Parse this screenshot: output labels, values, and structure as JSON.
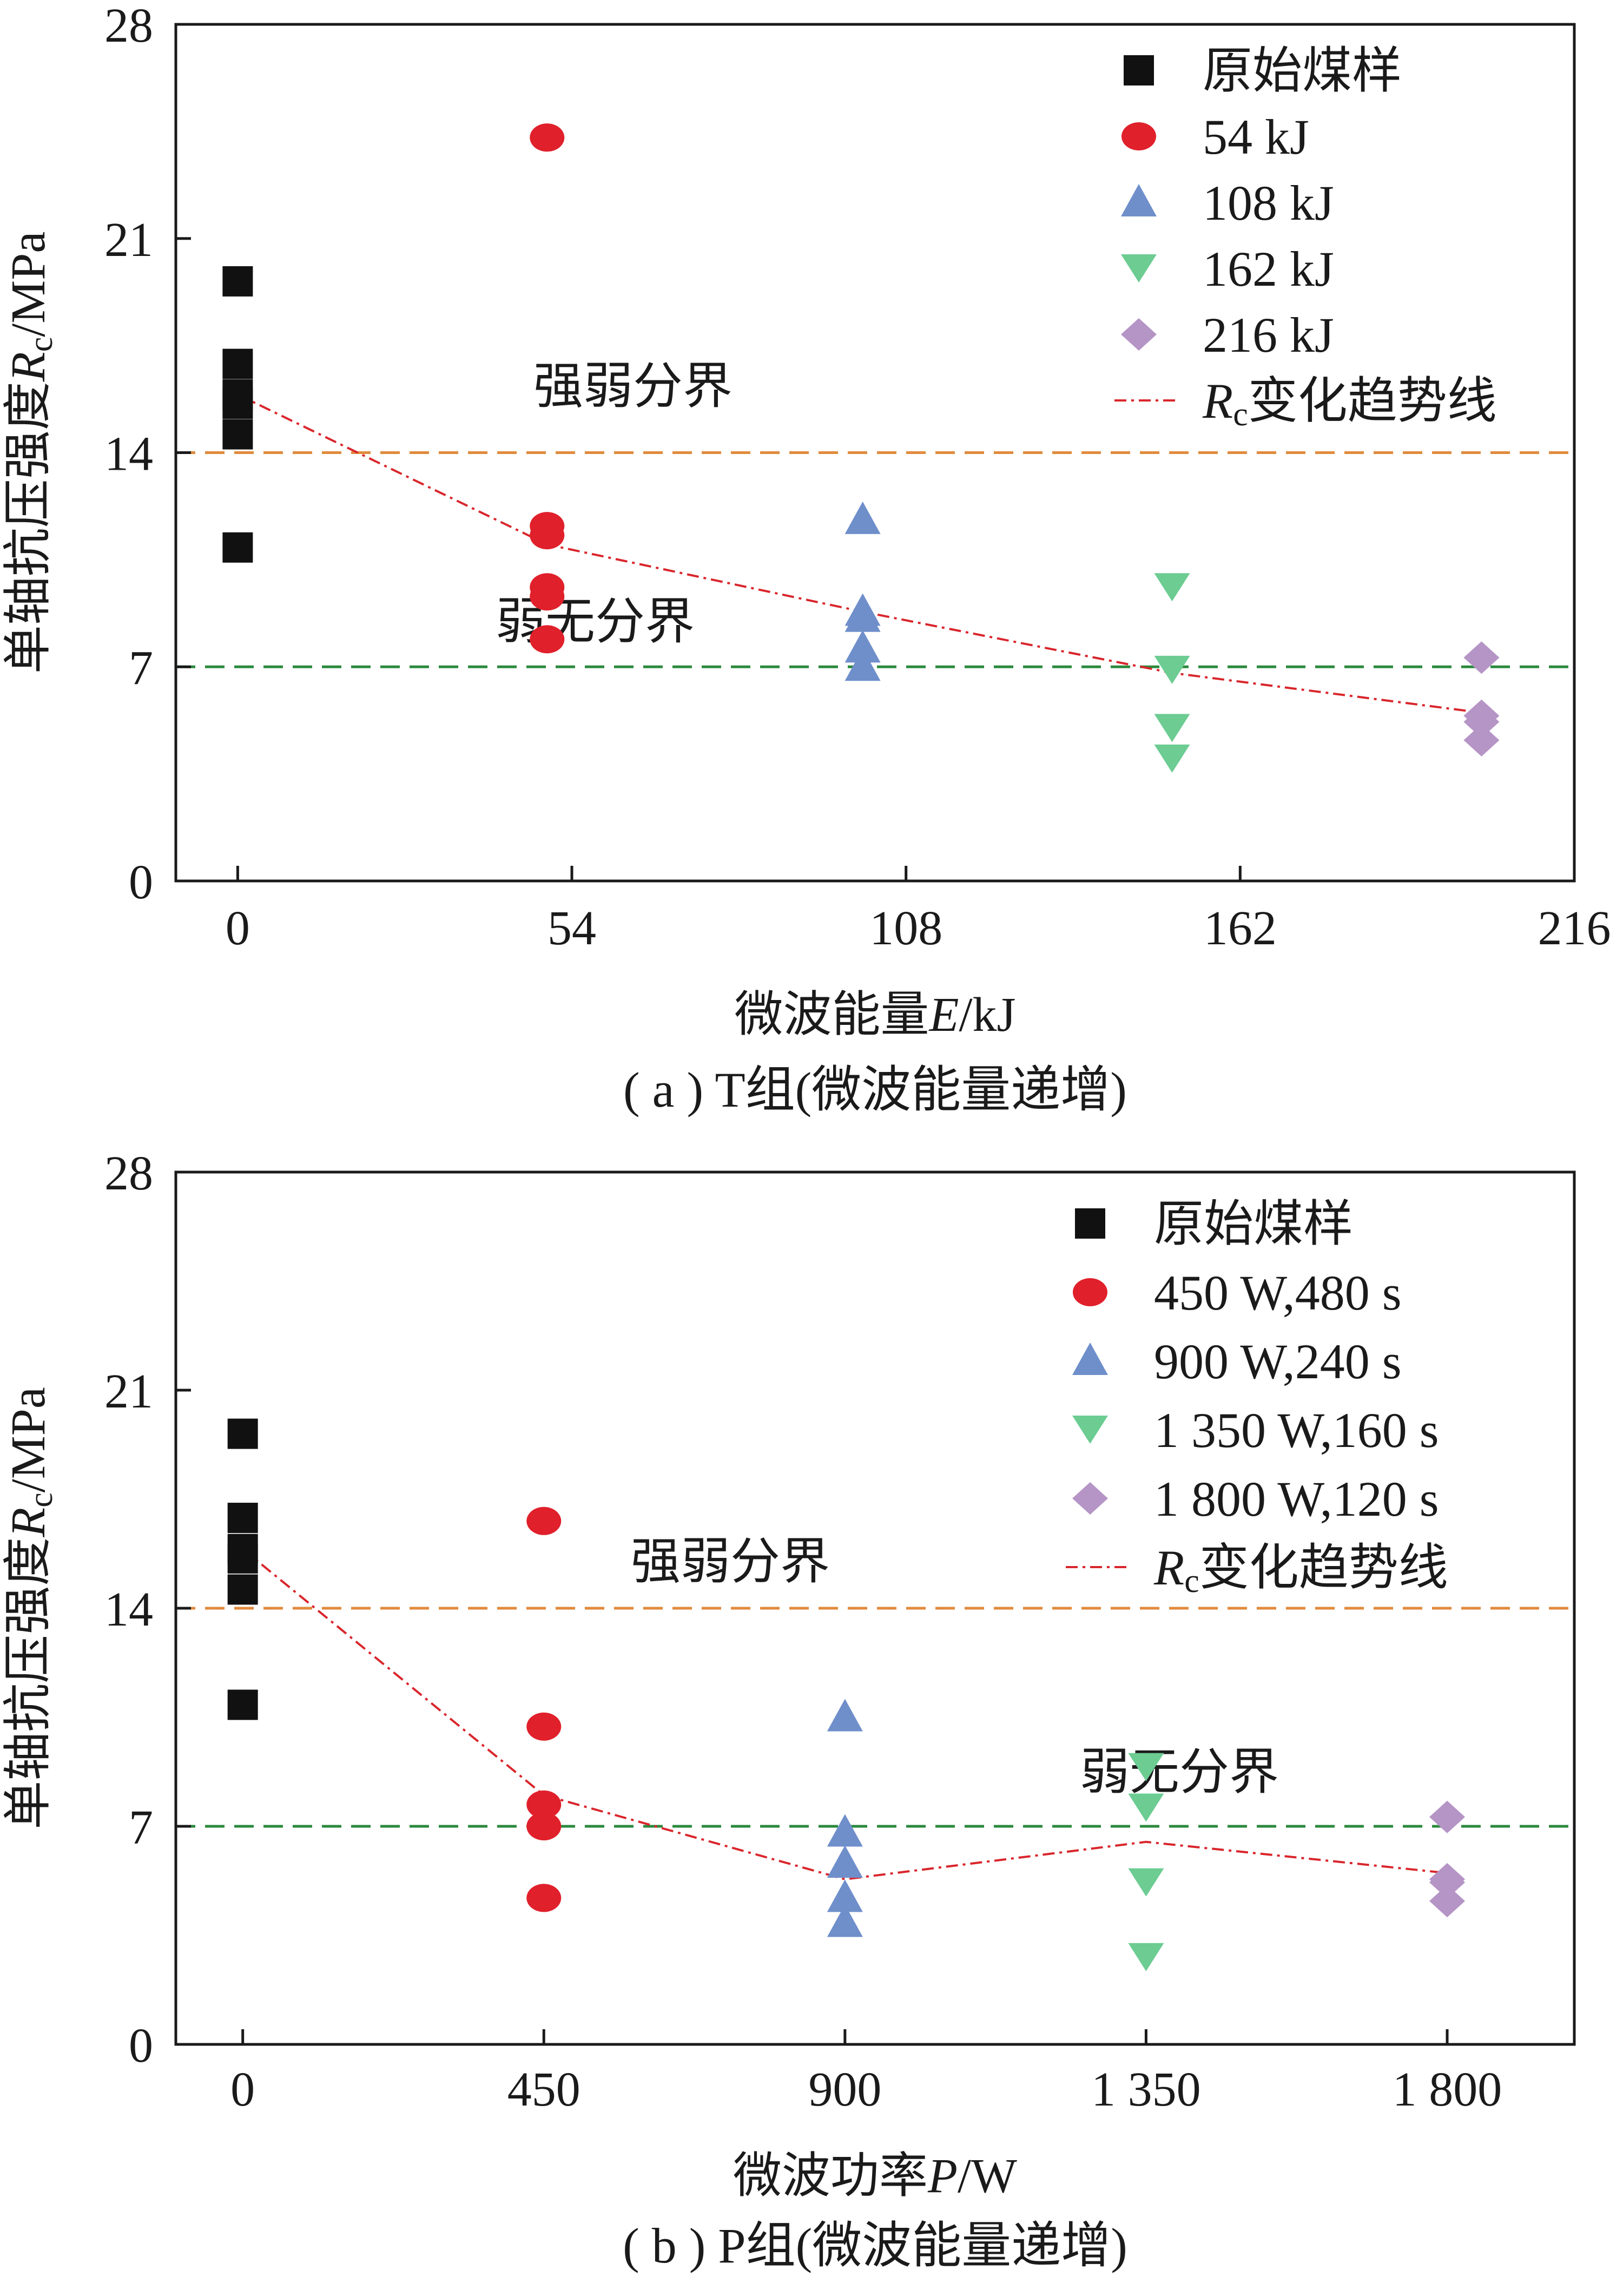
{
  "chart_data": [
    {
      "type": "scatter",
      "panel": "a",
      "caption": "( a ) T组(微波能量递增)",
      "xlabel": "微波能量E/kJ",
      "ylabel": "单轴抗压强度Rc/MPa",
      "xlim": [
        -10,
        216
      ],
      "ylim": [
        0,
        28
      ],
      "x_ticks": [
        "0",
        "54",
        "108",
        "162",
        "216"
      ],
      "x_tick_values": [
        0,
        54,
        108,
        162,
        216
      ],
      "y_ticks": [
        "0",
        "7",
        "14",
        "21",
        "28"
      ],
      "y_tick_values": [
        0,
        7,
        14,
        21,
        28
      ],
      "grid": false,
      "legend_position": "top-right",
      "series": [
        {
          "name": "原始煤样",
          "marker": "square",
          "color": "#111111",
          "points": [
            [
              0,
              19.6
            ],
            [
              0,
              16.9
            ],
            [
              0,
              15.9
            ],
            [
              0,
              15.6
            ],
            [
              0,
              14.6
            ],
            [
              0,
              10.9
            ]
          ]
        },
        {
          "name": "54 kJ",
          "marker": "circle",
          "color": "#e0202b",
          "points": [
            [
              50,
              24.3
            ],
            [
              50,
              11.6
            ],
            [
              50,
              11.3
            ],
            [
              50,
              9.6
            ],
            [
              50,
              9.3
            ],
            [
              50,
              7.9
            ]
          ]
        },
        {
          "name": "108 kJ",
          "marker": "triangle-up",
          "color": "#6f8fcb",
          "points": [
            [
              101,
              11.8
            ],
            [
              101,
              8.8
            ],
            [
              101,
              8.6
            ],
            [
              101,
              7.6
            ],
            [
              101,
              7.0
            ]
          ]
        },
        {
          "name": "162 kJ",
          "marker": "triangle-down",
          "color": "#6ccc92",
          "points": [
            [
              151,
              9.6
            ],
            [
              151,
              6.9
            ],
            [
              151,
              5.0
            ],
            [
              151,
              4.0
            ]
          ]
        },
        {
          "name": "216 kJ",
          "marker": "diamond",
          "color": "#b594c6",
          "points": [
            [
              201,
              7.3
            ],
            [
              201,
              5.4
            ],
            [
              201,
              5.2
            ],
            [
              201,
              4.6
            ]
          ]
        },
        {
          "name": "Rc变化趋势线",
          "marker": "dash-dot-line",
          "color": "#d9262c",
          "points": [
            [
              0,
              15.9
            ],
            [
              50,
              11.0
            ],
            [
              101,
              8.8
            ],
            [
              151,
              6.8
            ],
            [
              201,
              5.5
            ]
          ]
        }
      ],
      "reference_lines": [
        {
          "y": 14,
          "label": "强弱分界",
          "color": "#e08a3c"
        },
        {
          "y": 7,
          "label": "弱无分界",
          "color": "#2b8a3e"
        }
      ]
    },
    {
      "type": "scatter",
      "panel": "b",
      "caption": "( b ) P组(微波能量递增)",
      "xlabel": "微波功率P/W",
      "ylabel": "单轴抗压强度Rc/MPa",
      "xlim": [
        -100,
        1990
      ],
      "ylim": [
        0,
        28
      ],
      "x_ticks": [
        "0",
        "450",
        "900",
        "1 350",
        "1 800"
      ],
      "x_tick_values": [
        0,
        450,
        900,
        1350,
        1800
      ],
      "y_ticks": [
        "0",
        "7",
        "14",
        "21",
        "28"
      ],
      "y_tick_values": [
        0,
        7,
        14,
        21,
        28
      ],
      "grid": false,
      "legend_position": "top-right",
      "series": [
        {
          "name": "原始煤样",
          "marker": "square",
          "color": "#111111",
          "points": [
            [
              0,
              19.6
            ],
            [
              0,
              16.9
            ],
            [
              0,
              15.9
            ],
            [
              0,
              15.6
            ],
            [
              0,
              14.6
            ],
            [
              0,
              10.9
            ]
          ]
        },
        {
          "name": "450 W,480 s",
          "marker": "circle",
          "color": "#e0202b",
          "points": [
            [
              450,
              16.8
            ],
            [
              450,
              10.2
            ],
            [
              450,
              7.7
            ],
            [
              450,
              7.0
            ],
            [
              450,
              4.7
            ]
          ]
        },
        {
          "name": "900 W,240 s",
          "marker": "triangle-up",
          "color": "#6f8fcb",
          "points": [
            [
              900,
              10.5
            ],
            [
              900,
              6.8
            ],
            [
              900,
              5.8
            ],
            [
              900,
              4.7
            ],
            [
              900,
              3.9
            ]
          ]
        },
        {
          "name": "1 350 W,160 s",
          "marker": "triangle-down",
          "color": "#6ccc92",
          "points": [
            [
              1350,
              8.9
            ],
            [
              1350,
              7.6
            ],
            [
              1350,
              5.2
            ],
            [
              1350,
              2.8
            ]
          ]
        },
        {
          "name": "1 800 W,120 s",
          "marker": "diamond",
          "color": "#b594c6",
          "points": [
            [
              1800,
              7.3
            ],
            [
              1800,
              5.3
            ],
            [
              1800,
              5.2
            ],
            [
              1800,
              4.6
            ]
          ]
        },
        {
          "name": "Rc变化趋势线",
          "marker": "dash-dot-line",
          "color": "#d9262c",
          "points": [
            [
              0,
              15.9
            ],
            [
              450,
              8.0
            ],
            [
              900,
              5.3
            ],
            [
              1350,
              6.5
            ],
            [
              1800,
              5.5
            ]
          ]
        }
      ],
      "reference_lines": [
        {
          "y": 14,
          "label": "强弱分界",
          "color": "#e08a3c"
        },
        {
          "y": 7,
          "label": "弱无分界",
          "color": "#2b8a3e"
        }
      ]
    }
  ]
}
